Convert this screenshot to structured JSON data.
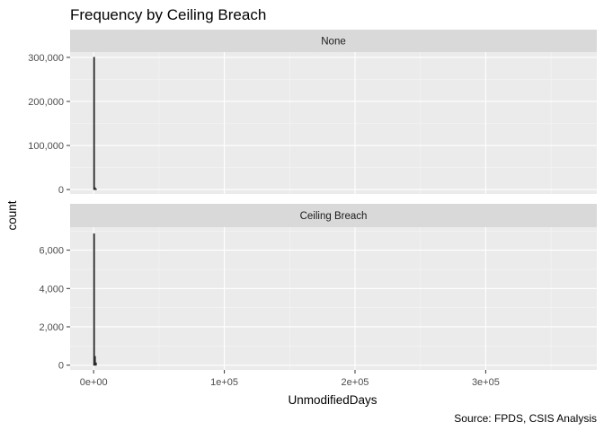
{
  "chart_data": {
    "type": "bar",
    "subtype": "histogram",
    "title": "Frequency by Ceiling Breach",
    "xlabel": "UnmodifiedDays",
    "ylabel": "count",
    "caption": "Source: FPDS, CSIS Analysis",
    "x_axis": {
      "range": [
        -18000,
        385000
      ],
      "major_ticks": [
        0,
        100000,
        200000,
        300000
      ],
      "major_tick_labels": [
        "0e+00",
        "1e+05",
        "2e+05",
        "3e+05"
      ],
      "minor_ticks": [
        50000,
        150000,
        250000,
        350000
      ]
    },
    "grid": true,
    "legend": "none",
    "facets": [
      {
        "label": "None",
        "y_range": [
          -10000,
          312000
        ],
        "y_ticks": [
          0,
          100000,
          200000,
          300000
        ],
        "y_tick_labels": [
          "0",
          "100,000",
          "200,000",
          "300,000"
        ],
        "y_minor_ticks": [
          50000,
          150000,
          250000
        ],
        "bins": [
          {
            "x0": 0,
            "x1": 700,
            "count": 300000
          },
          {
            "x0": 700,
            "x1": 1400,
            "count": 4000
          },
          {
            "x0": 1400,
            "x1": 2100,
            "count": 1200
          }
        ]
      },
      {
        "label": "Ceiling Breach",
        "y_range": [
          -250,
          7200
        ],
        "y_ticks": [
          0,
          2000,
          4000,
          6000
        ],
        "y_tick_labels": [
          "0",
          "2,000",
          "4,000",
          "6,000"
        ],
        "y_minor_ticks": [
          1000,
          3000,
          5000,
          7000
        ],
        "bins": [
          {
            "x0": 0,
            "x1": 700,
            "count": 6850
          },
          {
            "x0": 700,
            "x1": 1400,
            "count": 450
          },
          {
            "x0": 1400,
            "x1": 2100,
            "count": 120
          }
        ]
      }
    ]
  }
}
